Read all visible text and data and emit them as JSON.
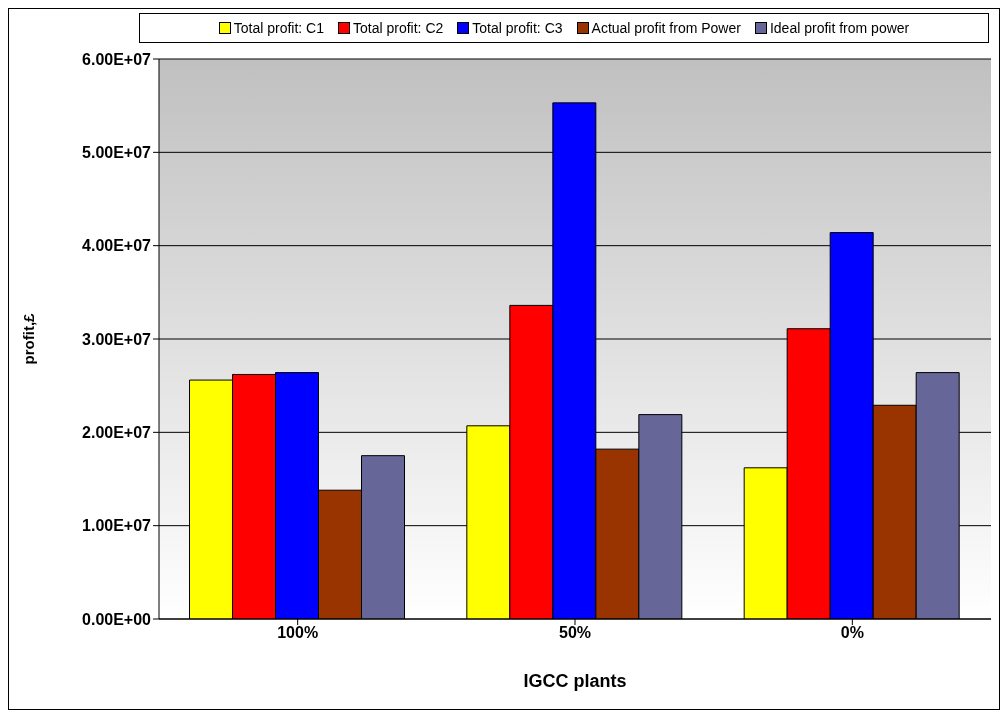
{
  "chart_data": {
    "type": "bar",
    "xlabel": "IGCC plants",
    "ylabel": "profit,£",
    "categories": [
      "100%",
      "50%",
      "0%"
    ],
    "series": [
      {
        "name": "Total profit: C1",
        "color": "#ffff00",
        "values": [
          25600000,
          20700000,
          16200000
        ]
      },
      {
        "name": "Total profit: C2",
        "color": "#ff0000",
        "values": [
          26200000,
          33600000,
          31100000
        ]
      },
      {
        "name": "Total profit: C3",
        "color": "#0000ff",
        "values": [
          26400000,
          55300000,
          41400000
        ]
      },
      {
        "name": "Actual profit from Power",
        "color": "#993300",
        "values": [
          13800000,
          18200000,
          22900000
        ]
      },
      {
        "name": "Ideal profit from power",
        "color": "#666699",
        "values": [
          17500000,
          21900000,
          26400000
        ]
      }
    ],
    "ylim": [
      0,
      60000000
    ],
    "yticks": [
      {
        "value": 0,
        "label": "0.00E+00"
      },
      {
        "value": 10000000,
        "label": "1.00E+07"
      },
      {
        "value": 20000000,
        "label": "2.00E+07"
      },
      {
        "value": 30000000,
        "label": "3.00E+07"
      },
      {
        "value": 40000000,
        "label": "4.00E+07"
      },
      {
        "value": 50000000,
        "label": "5.00E+07"
      },
      {
        "value": 60000000,
        "label": "6.00E+07"
      }
    ],
    "grid": "y",
    "legend": "top"
  }
}
